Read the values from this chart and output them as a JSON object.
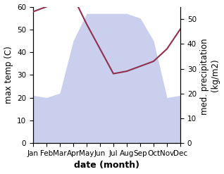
{
  "months": [
    "Jan",
    "Feb",
    "Mar",
    "Apr",
    "May",
    "Jun",
    "Jul",
    "Aug",
    "Sep",
    "Oct",
    "Nov",
    "Dec"
  ],
  "month_indices": [
    0,
    1,
    2,
    3,
    4,
    5,
    6,
    7,
    8,
    9,
    10,
    11
  ],
  "temperature": [
    21,
    20,
    22,
    45,
    57,
    57,
    57,
    57,
    55,
    45,
    20,
    21
  ],
  "precipitation": [
    53,
    55,
    57,
    59,
    48,
    38,
    28,
    29,
    31,
    33,
    38,
    46
  ],
  "temp_ylim": [
    0,
    60
  ],
  "precip_ylim": [
    0,
    55
  ],
  "temp_color": "#a0a8d8",
  "temp_fill_color": "#b8c0e8",
  "temp_fill_alpha": 0.75,
  "line_color": "#903050",
  "xlabel": "date (month)",
  "ylabel_left": "max temp (C)",
  "ylabel_right": "med. precipitation \n(kg/m2)",
  "xlabel_fontsize": 9,
  "ylabel_fontsize": 8.5,
  "tick_fontsize": 7.5,
  "fig_width": 3.18,
  "fig_height": 2.47,
  "dpi": 100
}
